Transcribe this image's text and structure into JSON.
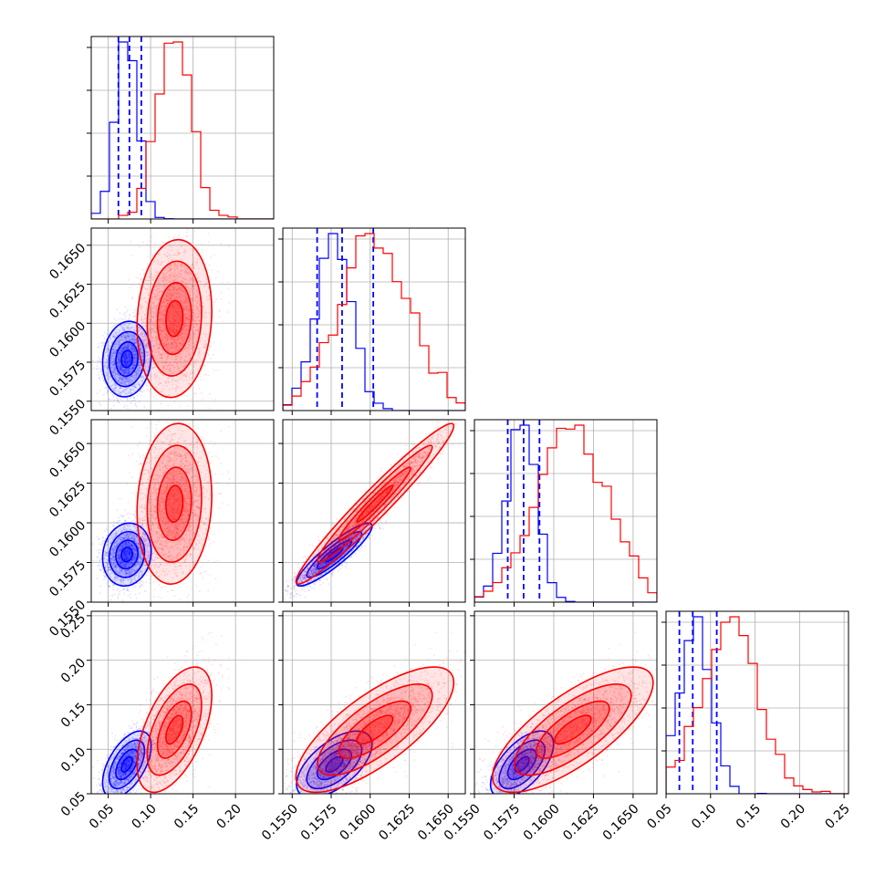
{
  "chart_data": {
    "type": "corner",
    "grid": true,
    "params": [
      {
        "range": [
          0.03,
          0.245
        ],
        "ticks": [
          0.05,
          0.1,
          0.15,
          0.2
        ],
        "tick_labels": [
          "0.05",
          "0.10",
          "0.15",
          "0.20"
        ]
      },
      {
        "range": [
          0.1544,
          0.1661
        ],
        "ticks": [
          0.155,
          0.1575,
          0.16,
          0.1625,
          0.165
        ],
        "tick_labels": [
          "0.1550",
          "0.1575",
          "0.1600",
          "0.1625",
          "0.1650"
        ]
      },
      {
        "range": [
          0.155,
          0.1665
        ],
        "ticks": [
          0.155,
          0.1575,
          0.16,
          0.1625,
          0.165
        ],
        "tick_labels": [
          "0.1550",
          "0.1575",
          "0.1600",
          "0.1625",
          "0.1650"
        ]
      },
      {
        "range": [
          0.05,
          0.255
        ],
        "ticks": [
          0.05,
          0.1,
          0.15,
          0.2,
          0.25
        ],
        "tick_labels": [
          "0.05",
          "0.10",
          "0.15",
          "0.20",
          "0.25"
        ]
      }
    ],
    "series": [
      {
        "color": "#0000ff",
        "mean": [
          0.072,
          0.1577,
          0.158,
          0.083
        ],
        "std": [
          0.013,
          0.0011,
          0.0009,
          0.017
        ],
        "corr": [
          [
            1,
            0.1,
            0.1,
            0.55
          ],
          [
            0.1,
            1,
            0.9,
            0.6
          ],
          [
            0.1,
            0.9,
            1,
            0.6
          ],
          [
            0.55,
            0.6,
            0.6,
            1
          ]
        ],
        "quantiles": [
          [
            0.062,
            0.075,
            0.089
          ],
          [
            0.1566,
            0.1582,
            0.1602
          ],
          [
            0.1571,
            0.1581,
            0.1591
          ],
          [
            0.065,
            0.08,
            0.107
          ]
        ]
      },
      {
        "color": "#ff0000",
        "mean": [
          0.128,
          0.1603,
          0.1612,
          0.122
        ],
        "std": [
          0.02,
          0.0023,
          0.0023,
          0.032
        ],
        "corr": [
          [
            1,
            0.1,
            0.1,
            0.55
          ],
          [
            0.1,
            1,
            0.97,
            0.75
          ],
          [
            0.1,
            0.97,
            1,
            0.75
          ],
          [
            0.55,
            0.75,
            0.75,
            1
          ]
        ],
        "quantiles": []
      }
    ]
  }
}
